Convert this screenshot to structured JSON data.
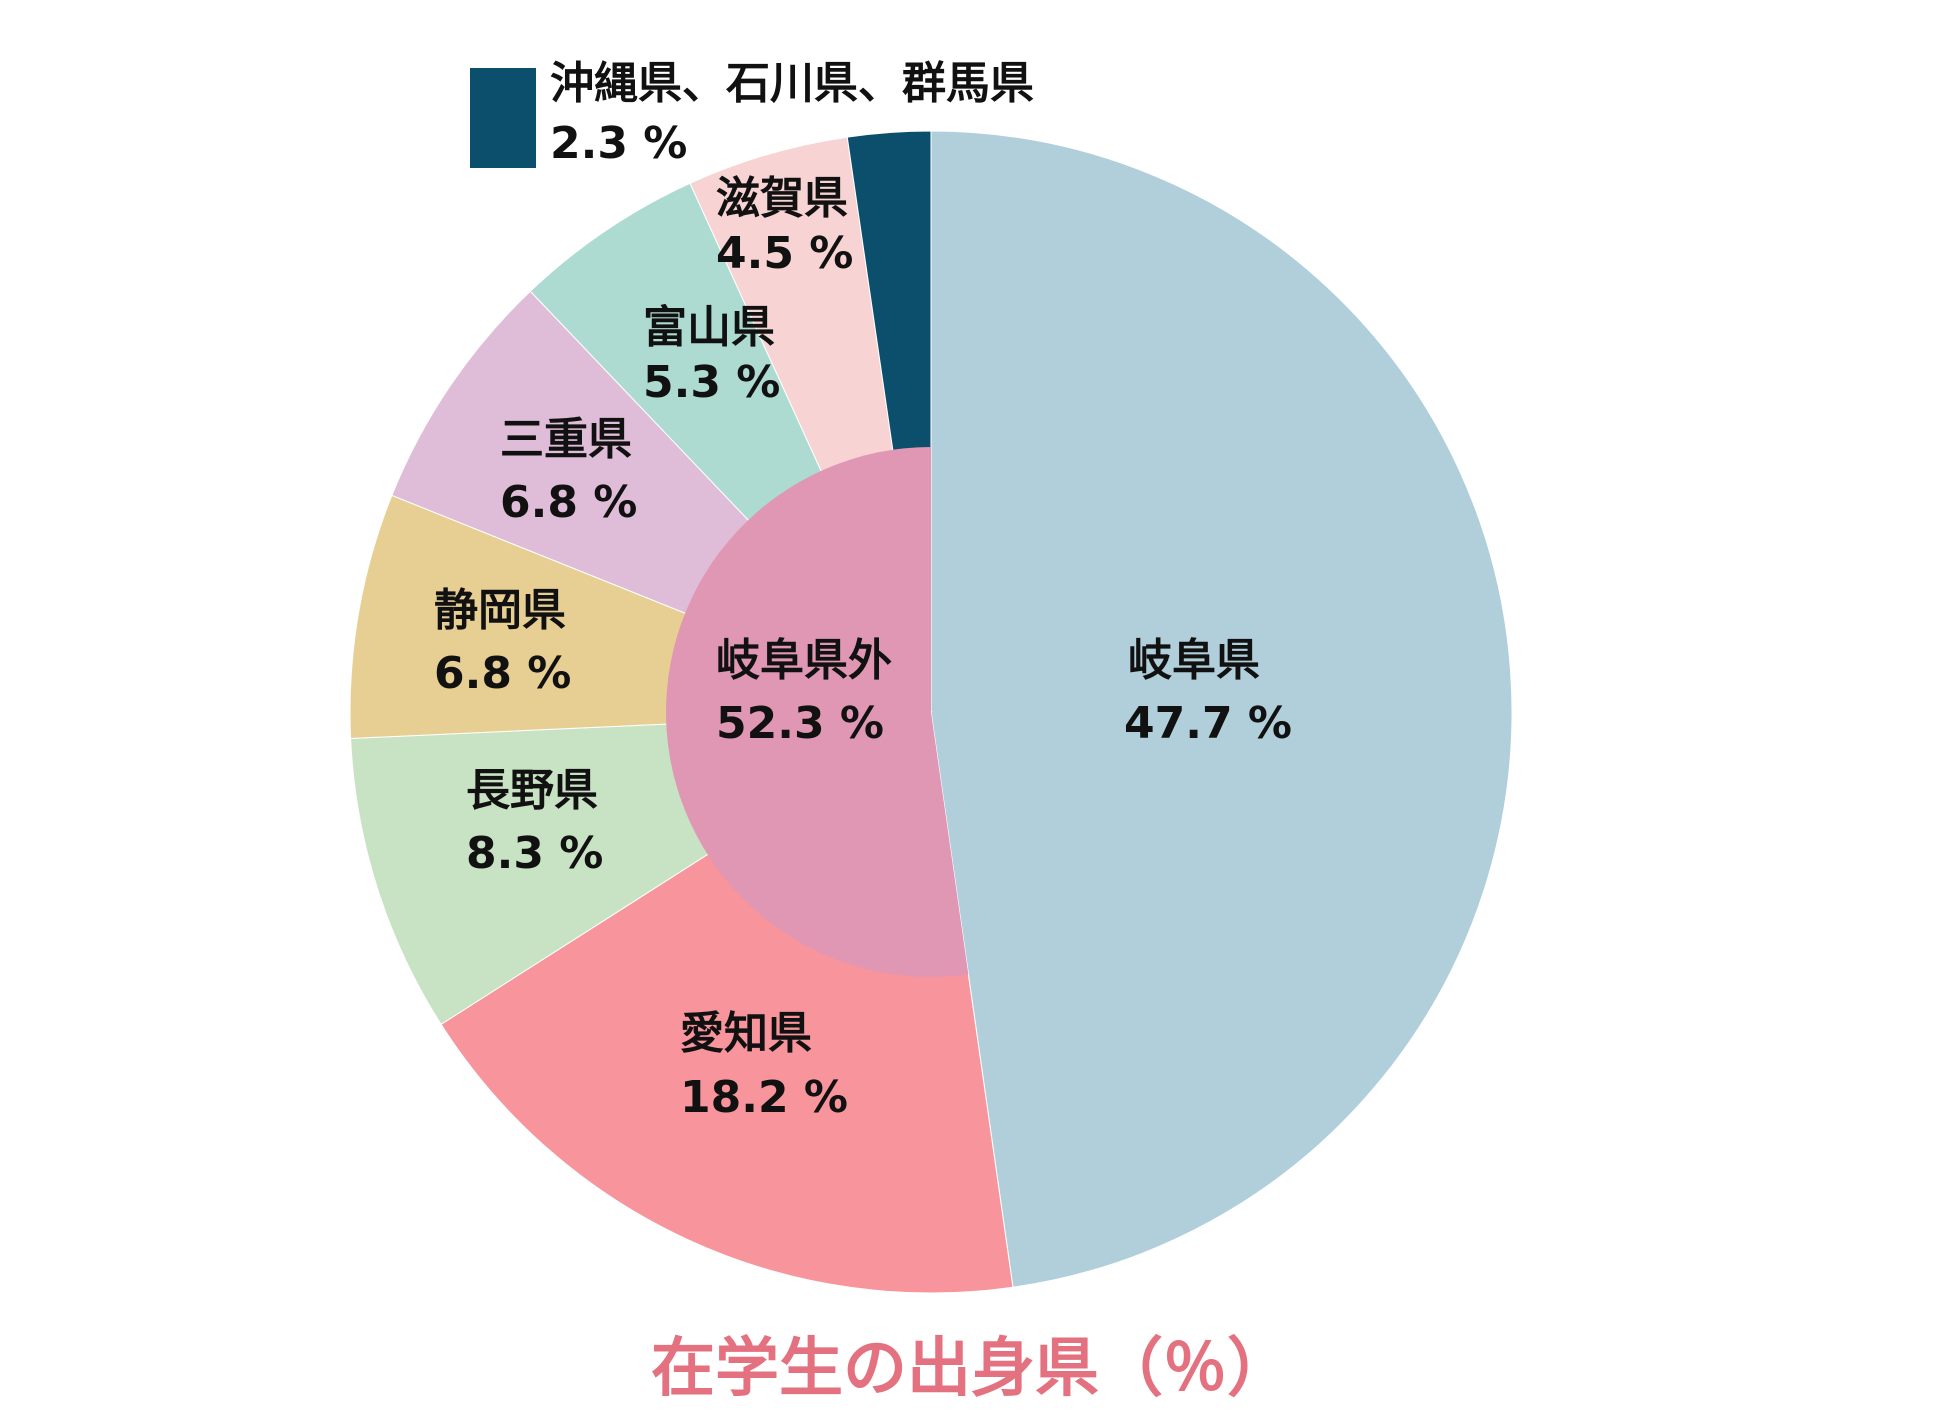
{
  "chart_data": {
    "type": "pie",
    "title": "在学生の出身県（％）",
    "unit": "%",
    "outer": {
      "slices": [
        {
          "name": "岐阜県",
          "value": 47.7,
          "value_label": "47.7 %",
          "color": "#B0CFDB"
        },
        {
          "name": "愛知県",
          "value": 18.2,
          "value_label": "18.2 %",
          "color": "#F7949C"
        },
        {
          "name": "長野県",
          "value": 8.3,
          "value_label": "8.3 %",
          "color": "#C8E3C4"
        },
        {
          "name": "静岡県",
          "value": 6.8,
          "value_label": "6.8 %",
          "color": "#E7CF94"
        },
        {
          "name": "三重県",
          "value": 6.8,
          "value_label": "6.8 %",
          "color": "#DFBDD9"
        },
        {
          "name": "富山県",
          "value": 5.3,
          "value_label": "5.3 %",
          "color": "#ADDBD2"
        },
        {
          "name": "滋賀県",
          "value": 4.5,
          "value_label": "4.5 %",
          "color": "#F7D3D3"
        },
        {
          "name": "沖縄県、石川県、群馬県",
          "value": 2.3,
          "value_label": "2.3 %",
          "color": "#0B4F6C"
        }
      ]
    },
    "inner": {
      "slice": {
        "name": "岐阜県外",
        "value": 52.3,
        "value_label": "52.3 %",
        "color": "#E097B3"
      }
    },
    "title_color": "#E4717F"
  }
}
